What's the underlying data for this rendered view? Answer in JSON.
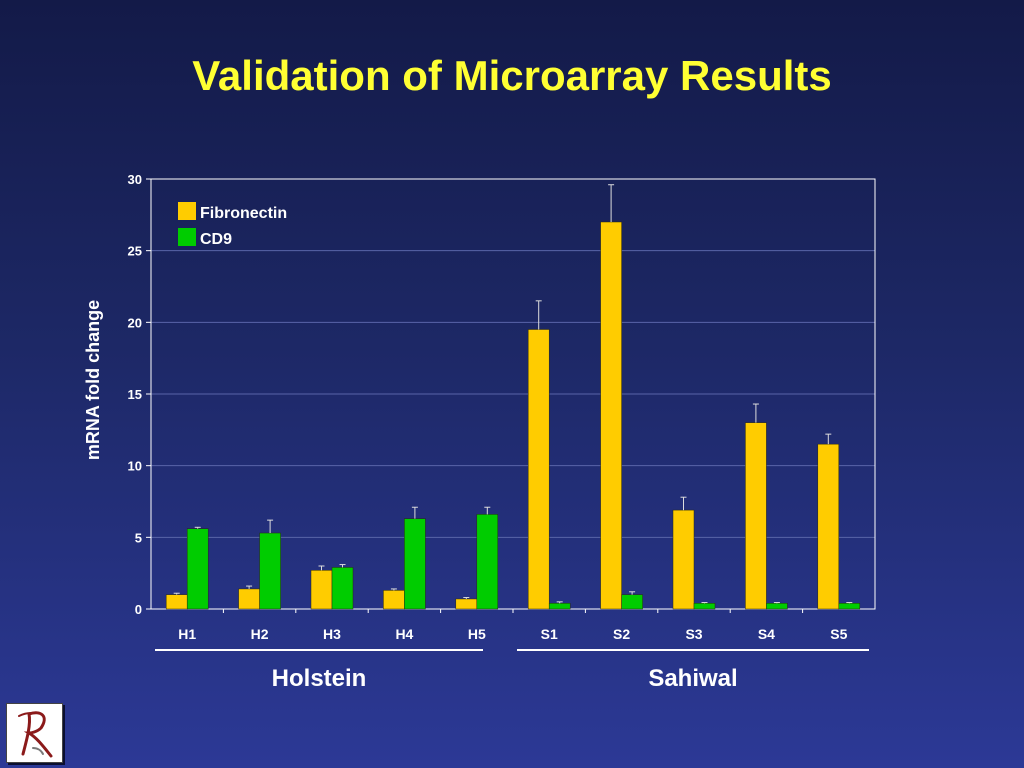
{
  "slide": {
    "title": "Validation of Microarray Results"
  },
  "chart_data": {
    "type": "bar",
    "title": "",
    "ylabel": "mRNA fold change",
    "xlabel": "",
    "ylim": [
      0,
      30
    ],
    "yticks": [
      0,
      5,
      10,
      15,
      20,
      25,
      30
    ],
    "grid": true,
    "legend_position": "top-left",
    "categories": [
      "H1",
      "H2",
      "H3",
      "H4",
      "H5",
      "S1",
      "S2",
      "S3",
      "S4",
      "S5"
    ],
    "series": [
      {
        "name": "Fibronectin",
        "color": "#ffcc00",
        "values": [
          1.0,
          1.4,
          2.7,
          1.3,
          0.7,
          19.5,
          27.0,
          6.9,
          13.0,
          11.5
        ],
        "errors": [
          0.1,
          0.2,
          0.3,
          0.1,
          0.1,
          2.0,
          2.6,
          0.9,
          1.3,
          0.7
        ]
      },
      {
        "name": "CD9",
        "color": "#00cc00",
        "values": [
          5.6,
          5.3,
          2.9,
          6.3,
          6.6,
          0.4,
          1.0,
          0.4,
          0.4,
          0.4
        ],
        "errors": [
          0.1,
          0.9,
          0.2,
          0.8,
          0.5,
          0.1,
          0.2,
          0.05,
          0.05,
          0.05
        ]
      }
    ],
    "groups": [
      {
        "label": "Holstein",
        "categories": [
          "H1",
          "H2",
          "H3",
          "H4",
          "H5"
        ]
      },
      {
        "label": "Sahiwal",
        "categories": [
          "S1",
          "S2",
          "S3",
          "S4",
          "S5"
        ]
      }
    ]
  },
  "logo": {
    "name": "logo-icon",
    "letter": "R"
  }
}
